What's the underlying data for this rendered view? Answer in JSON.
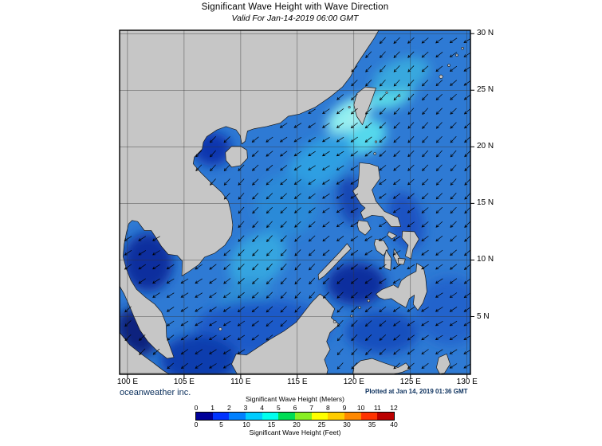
{
  "title": "Significant Wave Height with Wave Direction",
  "subtitle": "Valid For Jan-14-2019 06:00 GMT",
  "credit": "oceanweather inc.",
  "plotted": "Plotted at Jan 14, 2019 01:36 GMT",
  "chart_data": {
    "type": "map",
    "title": "Significant Wave Height with Wave Direction",
    "valid_time": "Jan-14-2019 06:00 GMT",
    "plotted_time": "Jan 14, 2019 01:36 GMT",
    "region": "South China Sea / Philippine Sea",
    "bounds": {
      "lon_min": 99.3,
      "lon_max": 130.3,
      "lat_min": -0.1,
      "lat_max": 30.3
    },
    "grid_interval_deg": 5,
    "lat_ticks": [
      "30 N",
      "25 N",
      "20 N",
      "15 N",
      "10 N",
      "5 N"
    ],
    "lat_tick_values": [
      30,
      25,
      20,
      15,
      10,
      5
    ],
    "lat_grid_values": [
      0,
      5,
      10,
      15,
      20,
      25,
      30
    ],
    "lon_ticks": [
      "100 E",
      "105 E",
      "110 E",
      "115 E",
      "120 E",
      "125 E",
      "130 E"
    ],
    "lon_tick_values": [
      100,
      105,
      110,
      115,
      120,
      125,
      130
    ],
    "ocean_base_color": "#2e7ad4",
    "land_color": "#c6c6c6",
    "legend": {
      "meters_label": "Significant Wave Height (Meters)",
      "feet_label": "Significant Wave Height (Feet)",
      "meters_ticks": [
        0,
        1,
        2,
        3,
        4,
        5,
        6,
        7,
        8,
        9,
        10,
        11,
        12
      ],
      "feet_ticks": [
        0,
        5,
        10,
        15,
        20,
        25,
        30,
        35,
        40
      ],
      "colors": [
        "#000099",
        "#0033ff",
        "#0080ff",
        "#00ccff",
        "#00ffee",
        "#00dd55",
        "#88ee22",
        "#ffff00",
        "#ffcc00",
        "#ff8800",
        "#ff3300",
        "#bb0000"
      ]
    },
    "arrows": {
      "note": "wave direction arrows pointing predominantly toward the southwest (NE monsoon)",
      "base_bearing_deg": 230,
      "spacing_deg": 1.25
    },
    "wave_field": [
      {
        "lon": 119.6,
        "lat": 22.8,
        "rx": 2.3,
        "ry": 1.2,
        "rot": -35,
        "color": "#8feef0",
        "meters": 4.6
      },
      {
        "lon": 120.3,
        "lat": 22.0,
        "rx": 1.0,
        "ry": 0.6,
        "rot": -30,
        "color": "#c2f6f2",
        "meters": 4.9
      },
      {
        "lon": 121.0,
        "lat": 20.9,
        "rx": 2.0,
        "ry": 1.4,
        "rot": -30,
        "color": "#55d8ec",
        "meters": 4.2
      },
      {
        "lon": 123.3,
        "lat": 24.6,
        "rx": 2.0,
        "ry": 1.1,
        "rot": -20,
        "color": "#5cdce8",
        "meters": 4.2
      },
      {
        "lon": 124.2,
        "lat": 26.3,
        "rx": 2.6,
        "ry": 1.4,
        "rot": -20,
        "color": "#38a8de",
        "meters": 3.5
      },
      {
        "lon": 117.0,
        "lat": 18.6,
        "rx": 3.4,
        "ry": 1.9,
        "rot": -35,
        "color": "#2f9fe2",
        "meters": 3.6
      },
      {
        "lon": 114.0,
        "lat": 14.8,
        "rx": 2.8,
        "ry": 2.8,
        "rot": 0,
        "color": "#2b8ad8",
        "meters": 3.2
      },
      {
        "lon": 111.5,
        "lat": 10.0,
        "rx": 2.8,
        "ry": 2.1,
        "rot": -40,
        "color": "#35a5e0",
        "meters": 3.4
      },
      {
        "lon": 110.3,
        "lat": 6.2,
        "rx": 2.5,
        "ry": 1.9,
        "rot": -30,
        "color": "#2f8fd6",
        "meters": 3.0
      },
      {
        "lon": 112.0,
        "lat": 4.0,
        "rx": 6.0,
        "ry": 2.5,
        "rot": 0,
        "color": "#1b5ac8",
        "meters": 2.0
      },
      {
        "lon": 107.5,
        "lat": 19.8,
        "rx": 1.7,
        "ry": 1.5,
        "rot": 0,
        "color": "#0c36ae",
        "meters": 1.4
      },
      {
        "lon": 101.8,
        "lat": 9.8,
        "rx": 2.2,
        "ry": 2.6,
        "rot": 0,
        "color": "#0a2e9e",
        "meters": 1.0
      },
      {
        "lon": 100.8,
        "lat": 3.6,
        "rx": 1.6,
        "ry": 2.2,
        "rot": -30,
        "color": "#08227e",
        "meters": 0.6
      },
      {
        "lon": 120.2,
        "lat": 7.9,
        "rx": 2.6,
        "ry": 1.9,
        "rot": 0,
        "color": "#0a2e9e",
        "meters": 1.0
      },
      {
        "lon": 122.5,
        "lat": 3.6,
        "rx": 3.2,
        "ry": 1.9,
        "rot": 0,
        "color": "#1450be",
        "meters": 1.6
      },
      {
        "lon": 106.3,
        "lat": 1.2,
        "rx": 3.4,
        "ry": 2.2,
        "rot": 0,
        "color": "#0d3cae",
        "meters": 1.2
      },
      {
        "lon": 124.6,
        "lat": 13.5,
        "rx": 1.5,
        "ry": 2.6,
        "rot": -15,
        "color": "#1b52c2",
        "meters": 2.0
      },
      {
        "lon": 119.7,
        "lat": 15.3,
        "rx": 1.1,
        "ry": 2.2,
        "rot": -10,
        "color": "#1547b4",
        "meters": 1.6
      },
      {
        "lon": 128.5,
        "lat": 5.5,
        "rx": 3.0,
        "ry": 3.0,
        "rot": 0,
        "color": "#2064cc",
        "meters": 2.2
      }
    ]
  },
  "map_geometry": {
    "polygons": {
      "mainland_asia": [
        [
          99.3,
          30.3
        ],
        [
          122.2,
          30.3
        ],
        [
          121.8,
          29.6
        ],
        [
          121.0,
          28.4
        ],
        [
          120.2,
          27.2
        ],
        [
          119.7,
          26.2
        ],
        [
          119.0,
          25.3
        ],
        [
          117.9,
          24.4
        ],
        [
          116.6,
          23.5
        ],
        [
          115.2,
          22.9
        ],
        [
          114.2,
          22.7
        ],
        [
          113.5,
          22.1
        ],
        [
          112.3,
          21.8
        ],
        [
          111.2,
          21.6
        ],
        [
          110.6,
          21.4
        ],
        [
          110.4,
          20.5
        ],
        [
          110.1,
          20.25
        ],
        [
          109.95,
          21.0
        ],
        [
          109.6,
          21.5
        ],
        [
          108.7,
          21.8
        ],
        [
          107.9,
          21.5
        ],
        [
          107.0,
          20.9
        ],
        [
          106.7,
          20.4
        ],
        [
          106.6,
          19.8
        ],
        [
          105.9,
          19.1
        ],
        [
          105.8,
          18.5
        ],
        [
          106.5,
          17.7
        ],
        [
          107.4,
          16.8
        ],
        [
          108.3,
          16.0
        ],
        [
          108.9,
          15.2
        ],
        [
          109.15,
          14.2
        ],
        [
          109.3,
          13.1
        ],
        [
          109.2,
          12.2
        ],
        [
          108.6,
          11.3
        ],
        [
          107.7,
          10.6
        ],
        [
          106.8,
          10.25
        ],
        [
          106.3,
          9.6
        ],
        [
          105.3,
          8.9
        ],
        [
          104.8,
          8.6
        ],
        [
          104.85,
          9.9
        ],
        [
          104.4,
          10.4
        ],
        [
          103.6,
          10.5
        ],
        [
          103.0,
          11.2
        ],
        [
          102.5,
          12.0
        ],
        [
          102.1,
          12.6
        ],
        [
          101.5,
          12.6
        ],
        [
          100.9,
          13.4
        ],
        [
          100.4,
          13.5
        ],
        [
          100.1,
          13.2
        ],
        [
          99.9,
          12.4
        ],
        [
          99.7,
          11.4
        ],
        [
          99.6,
          10.3
        ],
        [
          99.9,
          9.2
        ],
        [
          100.3,
          8.2
        ],
        [
          100.8,
          7.4
        ],
        [
          101.6,
          6.7
        ],
        [
          102.4,
          6.1
        ],
        [
          103.0,
          5.4
        ],
        [
          103.4,
          4.4
        ],
        [
          103.45,
          3.2
        ],
        [
          103.8,
          2.2
        ],
        [
          104.1,
          1.4
        ],
        [
          103.5,
          1.3
        ],
        [
          102.6,
          2.0
        ],
        [
          101.8,
          2.8
        ],
        [
          101.1,
          3.8
        ],
        [
          100.6,
          4.9
        ],
        [
          100.1,
          6.1
        ],
        [
          99.7,
          7.0
        ],
        [
          99.3,
          7.7
        ]
      ],
      "sumatra": [
        [
          99.3,
          3.6
        ],
        [
          100.2,
          2.5
        ],
        [
          101.2,
          1.7
        ],
        [
          102.3,
          0.9
        ],
        [
          103.2,
          0.2
        ],
        [
          103.7,
          -0.1
        ],
        [
          99.3,
          -0.1
        ]
      ],
      "borneo": [
        [
          109.7,
          -0.1
        ],
        [
          109.2,
          0.8
        ],
        [
          109.6,
          1.7
        ],
        [
          110.5,
          1.6
        ],
        [
          111.4,
          2.2
        ],
        [
          112.6,
          3.0
        ],
        [
          113.8,
          3.7
        ],
        [
          114.9,
          4.5
        ],
        [
          115.6,
          5.4
        ],
        [
          116.3,
          6.3
        ],
        [
          117.0,
          7.0
        ],
        [
          117.4,
          6.7
        ],
        [
          118.3,
          5.7
        ],
        [
          118.0,
          4.9
        ],
        [
          118.7,
          4.3
        ],
        [
          117.9,
          3.6
        ],
        [
          117.6,
          2.8
        ],
        [
          117.9,
          2.1
        ],
        [
          117.4,
          1.2
        ],
        [
          117.7,
          0.3
        ],
        [
          117.6,
          -0.1
        ]
      ],
      "sulawesi": [
        [
          119.9,
          -0.1
        ],
        [
          120.0,
          0.6
        ],
        [
          120.6,
          1.1
        ],
        [
          121.6,
          1.3
        ],
        [
          122.7,
          0.9
        ],
        [
          123.9,
          0.5
        ],
        [
          124.6,
          0.9
        ],
        [
          125.0,
          0.4
        ],
        [
          124.3,
          0.1
        ],
        [
          123.5,
          -0.1
        ]
      ],
      "halmahera": [
        [
          127.5,
          1.4
        ],
        [
          128.2,
          1.7
        ],
        [
          128.5,
          0.8
        ],
        [
          128.0,
          0.0
        ],
        [
          127.6,
          -0.1
        ],
        [
          127.3,
          0.5
        ]
      ],
      "hainan": [
        [
          108.65,
          19.5
        ],
        [
          109.2,
          20.05
        ],
        [
          110.0,
          20.05
        ],
        [
          110.55,
          19.7
        ],
        [
          110.6,
          19.0
        ],
        [
          110.0,
          18.35
        ],
        [
          109.2,
          18.2
        ],
        [
          108.7,
          18.8
        ]
      ],
      "taiwan": [
        [
          121.0,
          25.3
        ],
        [
          121.95,
          25.2
        ],
        [
          121.6,
          24.2
        ],
        [
          121.15,
          23.0
        ],
        [
          120.75,
          21.95
        ],
        [
          120.25,
          22.7
        ],
        [
          120.0,
          23.7
        ],
        [
          120.25,
          24.7
        ]
      ],
      "luzon": [
        [
          120.5,
          18.6
        ],
        [
          121.4,
          18.5
        ],
        [
          122.15,
          18.25
        ],
        [
          122.3,
          17.2
        ],
        [
          121.6,
          16.2
        ],
        [
          121.95,
          15.2
        ],
        [
          122.7,
          14.3
        ],
        [
          123.9,
          13.75
        ],
        [
          124.15,
          12.95
        ],
        [
          123.3,
          12.95
        ],
        [
          122.55,
          13.85
        ],
        [
          121.6,
          13.95
        ],
        [
          120.85,
          13.6
        ],
        [
          120.6,
          14.2
        ],
        [
          121.0,
          14.6
        ],
        [
          120.6,
          14.95
        ],
        [
          119.9,
          16.1
        ],
        [
          120.35,
          16.5
        ],
        [
          120.45,
          17.5
        ]
      ],
      "mindoro": [
        [
          120.4,
          13.5
        ],
        [
          121.2,
          13.4
        ],
        [
          121.5,
          12.75
        ],
        [
          121.0,
          12.2
        ],
        [
          120.45,
          12.6
        ],
        [
          120.3,
          13.1
        ]
      ],
      "palawan": [
        [
          119.4,
          11.45
        ],
        [
          119.75,
          11.0
        ],
        [
          119.0,
          10.25
        ],
        [
          118.15,
          9.35
        ],
        [
          117.35,
          8.55
        ],
        [
          116.9,
          8.25
        ],
        [
          116.85,
          8.7
        ],
        [
          117.8,
          9.7
        ],
        [
          118.75,
          10.7
        ]
      ],
      "panay": [
        [
          121.9,
          11.85
        ],
        [
          122.65,
          11.7
        ],
        [
          123.05,
          11.0
        ],
        [
          122.6,
          10.4
        ],
        [
          122.0,
          10.85
        ],
        [
          121.8,
          11.4
        ]
      ],
      "negros": [
        [
          122.85,
          10.9
        ],
        [
          123.3,
          10.15
        ],
        [
          123.25,
          9.1
        ],
        [
          122.7,
          9.3
        ],
        [
          122.7,
          10.2
        ]
      ],
      "cebu": [
        [
          123.55,
          11.0
        ],
        [
          124.0,
          10.3
        ],
        [
          124.25,
          9.65
        ],
        [
          123.9,
          9.55
        ],
        [
          123.5,
          10.35
        ]
      ],
      "bohol": [
        [
          123.9,
          10.15
        ],
        [
          124.55,
          10.1
        ],
        [
          124.4,
          9.6
        ],
        [
          123.95,
          9.65
        ]
      ],
      "samar_leyte": [
        [
          124.3,
          12.55
        ],
        [
          125.35,
          12.5
        ],
        [
          125.75,
          11.85
        ],
        [
          125.2,
          10.9
        ],
        [
          125.05,
          10.1
        ],
        [
          124.55,
          10.35
        ],
        [
          124.8,
          11.3
        ],
        [
          124.25,
          11.95
        ]
      ],
      "masbate": [
        [
          123.1,
          12.5
        ],
        [
          123.8,
          12.15
        ],
        [
          123.35,
          11.85
        ],
        [
          122.95,
          12.2
        ]
      ],
      "mindanao": [
        [
          121.95,
          7.0
        ],
        [
          122.5,
          7.4
        ],
        [
          123.0,
          7.6
        ],
        [
          123.5,
          7.8
        ],
        [
          123.9,
          7.55
        ],
        [
          124.2,
          8.2
        ],
        [
          124.75,
          8.6
        ],
        [
          125.5,
          9.0
        ],
        [
          125.55,
          9.7
        ],
        [
          126.15,
          9.35
        ],
        [
          126.35,
          8.4
        ],
        [
          126.45,
          7.2
        ],
        [
          126.1,
          6.2
        ],
        [
          125.65,
          5.55
        ],
        [
          125.25,
          6.1
        ],
        [
          125.35,
          6.9
        ],
        [
          124.9,
          6.6
        ],
        [
          124.6,
          5.8
        ],
        [
          123.9,
          6.2
        ],
        [
          123.3,
          6.6
        ],
        [
          122.7,
          6.5
        ],
        [
          122.2,
          6.7
        ]
      ]
    },
    "islets": [
      [
        121.85,
        19.4,
        1.4
      ],
      [
        121.95,
        20.45,
        1.2
      ],
      [
        122.9,
        24.8,
        1.2
      ],
      [
        124.0,
        24.5,
        1.3
      ],
      [
        127.7,
        26.2,
        2.2
      ],
      [
        128.4,
        27.2,
        1.5
      ],
      [
        129.1,
        28.1,
        1.5
      ],
      [
        129.6,
        28.7,
        1.4
      ],
      [
        121.3,
        6.4,
        1.5
      ],
      [
        120.5,
        5.8,
        1.4
      ],
      [
        119.8,
        5.05,
        1.4
      ],
      [
        118.3,
        4.55,
        1.6
      ],
      [
        108.2,
        3.9,
        1.8
      ],
      [
        119.6,
        23.5,
        1.2
      ]
    ]
  }
}
